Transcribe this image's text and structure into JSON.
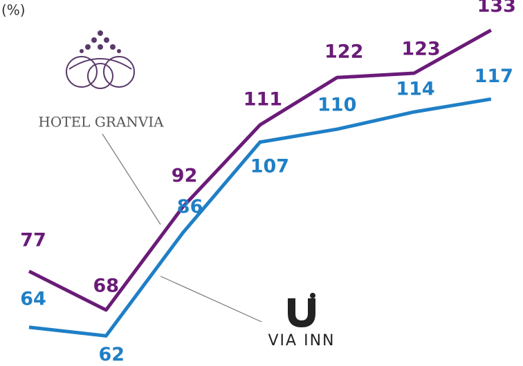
{
  "chart_data": {
    "type": "line",
    "y_label": "(%)",
    "categories": [
      null,
      null,
      null,
      null,
      null,
      null,
      null
    ],
    "series": [
      {
        "name": "HOTEL GRANVIA",
        "color": "#6a1b78",
        "values": [
          77,
          68,
          92,
          111,
          122,
          123,
          133
        ]
      },
      {
        "name": "VIA INN",
        "color": "#1f7fc6",
        "values": [
          64,
          62,
          86,
          107,
          110,
          114,
          117
        ]
      }
    ],
    "ylim": [
      55,
      140
    ]
  }
}
